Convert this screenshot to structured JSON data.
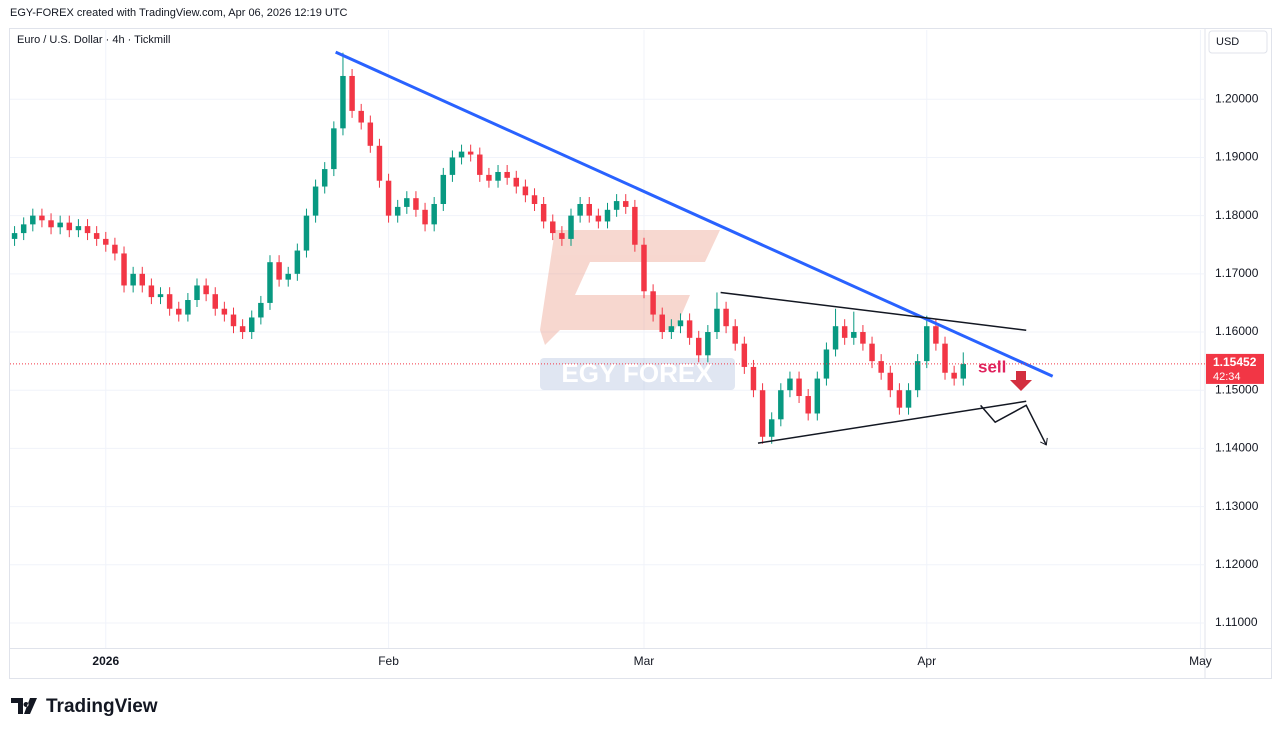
{
  "chart_data": {
    "type": "candlestick",
    "header": "EGY-FOREX created with TradingView.com, Apr 06, 2026 12:19 UTC",
    "title": "Euro / U.S. Dollar · 4h · Tickmill",
    "currency": "USD",
    "watermark": "EGY FOREX",
    "brand": "TradingView",
    "annotation": "sell",
    "last_price": 1.15452,
    "countdown": "42:34",
    "up_color": "#089981",
    "down_color": "#f23645",
    "grid": true,
    "categories": [
      null,
      null,
      null,
      null,
      null,
      null,
      null,
      null,
      null,
      null,
      "2026",
      null,
      null,
      null,
      null,
      null,
      null,
      null,
      null,
      null,
      null,
      null,
      null,
      null,
      null,
      null,
      null,
      null,
      null,
      null,
      null,
      null,
      null,
      null,
      null,
      null,
      null,
      null,
      null,
      null,
      null,
      "Feb",
      null,
      null,
      null,
      null,
      null,
      null,
      null,
      null,
      null,
      null,
      null,
      null,
      null,
      null,
      null,
      null,
      null,
      null,
      null,
      null,
      null,
      null,
      null,
      null,
      null,
      null,
      null,
      "Mar",
      null,
      null,
      null,
      null,
      null,
      null,
      null,
      null,
      null,
      null,
      null,
      null,
      null,
      null,
      null,
      null,
      null,
      null,
      null,
      null,
      null,
      null,
      null,
      null,
      null,
      null,
      null,
      null,
      null,
      null,
      "Apr",
      null,
      null,
      null,
      null,
      null,
      null,
      null,
      null,
      null,
      null,
      null,
      null,
      null,
      null,
      null,
      null,
      null,
      null,
      null,
      null,
      null,
      null,
      null,
      null,
      null,
      null,
      null,
      null,
      null,
      "May"
    ],
    "open": [
      1.176,
      1.177,
      1.1785,
      1.18,
      1.1792,
      1.178,
      1.1788,
      1.1775,
      1.1782,
      1.177,
      1.176,
      1.175,
      1.1735,
      1.168,
      1.17,
      1.168,
      1.166,
      1.1665,
      1.164,
      1.163,
      1.1655,
      1.168,
      1.1665,
      1.164,
      1.163,
      1.161,
      1.16,
      1.1625,
      1.165,
      1.172,
      1.169,
      1.17,
      1.174,
      1.18,
      1.185,
      1.188,
      1.195,
      1.204,
      1.198,
      1.196,
      1.192,
      1.186,
      1.18,
      1.1815,
      1.183,
      1.181,
      1.1785,
      1.182,
      1.187,
      1.19,
      1.191,
      1.1905,
      1.187,
      1.186,
      1.1875,
      1.1865,
      1.185,
      1.1835,
      1.182,
      1.179,
      1.177,
      1.176,
      1.18,
      1.182,
      1.18,
      1.179,
      1.181,
      1.1825,
      1.1815,
      1.175,
      1.167,
      1.163,
      1.16,
      1.161,
      1.162,
      1.159,
      1.156,
      1.16,
      1.164,
      1.161,
      1.158,
      1.154,
      1.15,
      1.142,
      1.145,
      1.15,
      1.152,
      1.149,
      1.146,
      1.152,
      1.157,
      1.161,
      1.159,
      1.16,
      1.158,
      1.155,
      1.153,
      1.15,
      1.147,
      1.15,
      1.155,
      1.161,
      1.158,
      1.153,
      1.152,
      null,
      null,
      null,
      null,
      null,
      null,
      null,
      null,
      null,
      null,
      null,
      null,
      null,
      null,
      null,
      null,
      null,
      null,
      null,
      null,
      null,
      null,
      null,
      null,
      null,
      null
    ],
    "high": [
      1.1782,
      1.1797,
      1.1812,
      1.1812,
      1.1804,
      1.18,
      1.18,
      1.1794,
      1.1794,
      1.1782,
      1.1772,
      1.1762,
      1.1747,
      1.1712,
      1.1712,
      1.1692,
      1.1677,
      1.1677,
      1.1652,
      1.1667,
      1.1692,
      1.1692,
      1.1677,
      1.1652,
      1.1642,
      1.1622,
      1.1637,
      1.1662,
      1.1732,
      1.1732,
      1.1712,
      1.1752,
      1.1812,
      1.1862,
      1.1892,
      1.1962,
      1.208,
      1.2052,
      1.1992,
      1.1972,
      1.1932,
      1.1872,
      1.1827,
      1.1842,
      1.1842,
      1.1822,
      1.1832,
      1.1882,
      1.1912,
      1.1922,
      1.1922,
      1.1917,
      1.1882,
      1.1887,
      1.1887,
      1.1877,
      1.1862,
      1.1847,
      1.1832,
      1.1802,
      1.1782,
      1.1812,
      1.1832,
      1.1832,
      1.1812,
      1.1822,
      1.1837,
      1.1837,
      1.1827,
      1.1762,
      1.1682,
      1.1642,
      1.1622,
      1.1632,
      1.1632,
      1.1602,
      1.1612,
      1.1668,
      1.1652,
      1.1622,
      1.1592,
      1.1552,
      1.1512,
      1.1462,
      1.1512,
      1.1532,
      1.1532,
      1.1502,
      1.1532,
      1.1582,
      1.164,
      1.1622,
      1.1635,
      1.1612,
      1.1592,
      1.1562,
      1.1542,
      1.1512,
      1.1512,
      1.1562,
      1.1628,
      1.1622,
      1.1592,
      1.1542,
      1.1565,
      null,
      null,
      null,
      null,
      null,
      null,
      null,
      null,
      null,
      null,
      null,
      null,
      null,
      null,
      null,
      null,
      null,
      null,
      null,
      null,
      null,
      null,
      null,
      null,
      null,
      null
    ],
    "low": [
      1.1748,
      1.1758,
      1.1773,
      1.178,
      1.1768,
      1.1768,
      1.1763,
      1.1763,
      1.1758,
      1.1748,
      1.1738,
      1.1723,
      1.1668,
      1.1668,
      1.1668,
      1.1648,
      1.1648,
      1.1628,
      1.1618,
      1.1618,
      1.1643,
      1.1653,
      1.1628,
      1.1618,
      1.1598,
      1.1588,
      1.1588,
      1.1613,
      1.1638,
      1.1678,
      1.1678,
      1.1688,
      1.1728,
      1.1788,
      1.1838,
      1.1868,
      1.1938,
      1.1968,
      1.1948,
      1.1908,
      1.1848,
      1.1788,
      1.1788,
      1.1803,
      1.1798,
      1.1773,
      1.1773,
      1.1808,
      1.1858,
      1.1888,
      1.1893,
      1.1858,
      1.1848,
      1.1848,
      1.1853,
      1.1838,
      1.1823,
      1.1808,
      1.1778,
      1.1758,
      1.1748,
      1.1748,
      1.1788,
      1.1788,
      1.1778,
      1.1778,
      1.1798,
      1.1803,
      1.1738,
      1.1658,
      1.1618,
      1.1588,
      1.1588,
      1.1598,
      1.1578,
      1.1548,
      1.1548,
      1.1588,
      1.1598,
      1.1568,
      1.1528,
      1.1488,
      1.1408,
      1.1408,
      1.1438,
      1.1488,
      1.1478,
      1.1448,
      1.1448,
      1.1508,
      1.1558,
      1.1578,
      1.1578,
      1.1568,
      1.1538,
      1.1518,
      1.1488,
      1.1458,
      1.1458,
      1.1488,
      1.1538,
      1.1568,
      1.1518,
      1.1508,
      1.1508,
      null,
      null,
      null,
      null,
      null,
      null,
      null,
      null,
      null,
      null,
      null,
      null,
      null,
      null,
      null,
      null,
      null,
      null,
      null,
      null,
      null,
      null,
      null,
      null,
      null,
      null
    ],
    "close": [
      1.177,
      1.1785,
      1.18,
      1.1792,
      1.178,
      1.1788,
      1.1775,
      1.1782,
      1.177,
      1.176,
      1.175,
      1.1735,
      1.168,
      1.17,
      1.168,
      1.166,
      1.1665,
      1.164,
      1.163,
      1.1655,
      1.168,
      1.1665,
      1.164,
      1.163,
      1.161,
      1.16,
      1.1625,
      1.165,
      1.172,
      1.169,
      1.17,
      1.174,
      1.18,
      1.185,
      1.188,
      1.195,
      1.204,
      1.198,
      1.196,
      1.192,
      1.186,
      1.18,
      1.1815,
      1.183,
      1.181,
      1.1785,
      1.182,
      1.187,
      1.19,
      1.191,
      1.1905,
      1.187,
      1.186,
      1.1875,
      1.1865,
      1.185,
      1.1835,
      1.182,
      1.179,
      1.177,
      1.176,
      1.18,
      1.182,
      1.18,
      1.179,
      1.181,
      1.1825,
      1.1815,
      1.175,
      1.167,
      1.163,
      1.16,
      1.161,
      1.162,
      1.159,
      1.156,
      1.16,
      1.164,
      1.161,
      1.158,
      1.154,
      1.15,
      1.142,
      1.145,
      1.15,
      1.152,
      1.149,
      1.146,
      1.152,
      1.157,
      1.161,
      1.159,
      1.16,
      1.158,
      1.155,
      1.153,
      1.15,
      1.147,
      1.15,
      1.155,
      1.161,
      1.158,
      1.153,
      1.152,
      1.1545,
      null,
      null,
      null,
      null,
      null,
      null,
      null,
      null,
      null,
      null,
      null,
      null,
      null,
      null,
      null,
      null,
      null,
      null,
      null,
      null,
      null,
      null,
      null,
      null,
      null,
      null
    ],
    "ylim": [
      1.1057,
      1.2119
    ],
    "yticks": [
      {
        "value": 1.11,
        "label": "1.11000"
      },
      {
        "value": 1.12,
        "label": "1.12000"
      },
      {
        "value": 1.13,
        "label": "1.13000"
      },
      {
        "value": 1.14,
        "label": "1.14000"
      },
      {
        "value": 1.15,
        "label": "1.15000"
      },
      {
        "value": 1.16,
        "label": "1.16000"
      },
      {
        "value": 1.17,
        "label": "1.17000"
      },
      {
        "value": 1.18,
        "label": "1.18000"
      },
      {
        "value": 1.19,
        "label": "1.19000"
      },
      {
        "value": 1.2,
        "label": "1.20000"
      }
    ],
    "drawings": [
      {
        "color": "#2962ff",
        "x": [
          35.2,
          113.8
        ],
        "y": [
          1.2081,
          1.1524
        ]
      },
      {
        "color": "#131722",
        "x": [
          77.4,
          110.9
        ],
        "y": [
          1.1668,
          1.1603
        ]
      },
      {
        "color": "#131722",
        "x": [
          81.5,
          110.9
        ],
        "y": [
          1.1409,
          1.1481
        ]
      },
      {
        "color": "#131722",
        "x": [
          105.9,
          107.5,
          110.9,
          113.1
        ],
        "y": [
          1.1474,
          1.1445,
          1.1474,
          1.1406
        ]
      }
    ]
  }
}
